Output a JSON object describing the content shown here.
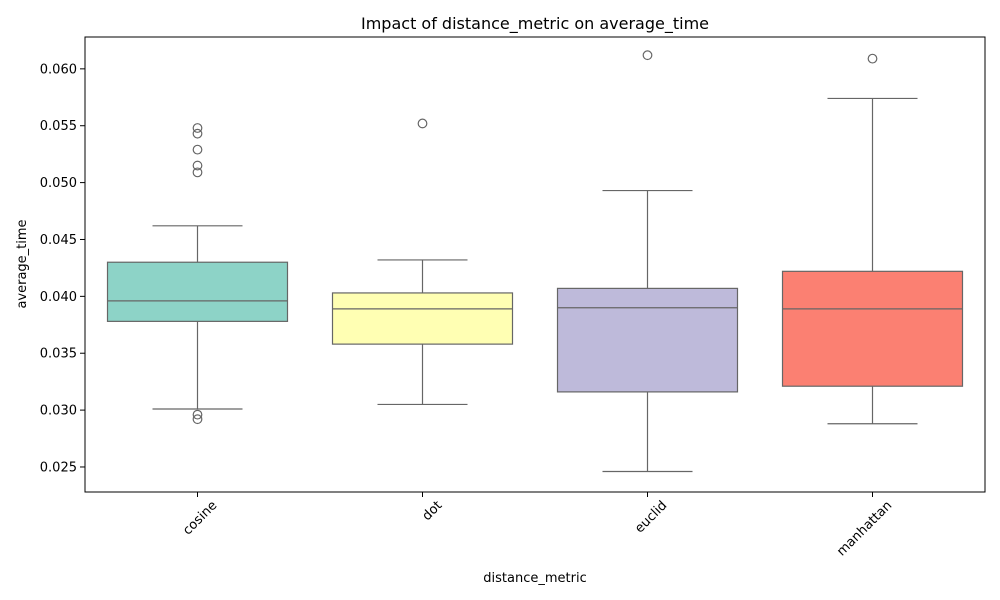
{
  "chart_data": {
    "type": "box",
    "title": "Impact of distance_metric on average_time",
    "xlabel": "distance_metric",
    "ylabel": "average_time",
    "categories": [
      "cosine",
      "dot",
      "euclid",
      "manhattan"
    ],
    "ylim": [
      0.0228,
      0.0628
    ],
    "yticks": [
      0.025,
      0.03,
      0.035,
      0.04,
      0.045,
      0.05,
      0.055,
      0.06
    ],
    "ytick_labels": [
      "0.025",
      "0.030",
      "0.035",
      "0.040",
      "0.045",
      "0.050",
      "0.055",
      "0.060"
    ],
    "grid": false,
    "colors": {
      "box_fill": [
        "#8dd3c7",
        "#ffffb3",
        "#bebada",
        "#fb8072"
      ],
      "stroke": "#666666"
    },
    "series": [
      {
        "category": "cosine",
        "q1": 0.0378,
        "median": 0.0396,
        "q3": 0.043,
        "whisker_low": 0.0301,
        "whisker_high": 0.0462,
        "outliers": [
          0.0548,
          0.0543,
          0.0529,
          0.0515,
          0.0509,
          0.0296,
          0.0292
        ]
      },
      {
        "category": "dot",
        "q1": 0.0358,
        "median": 0.0389,
        "q3": 0.0403,
        "whisker_low": 0.0305,
        "whisker_high": 0.0432,
        "outliers": [
          0.0552
        ]
      },
      {
        "category": "euclid",
        "q1": 0.0316,
        "median": 0.039,
        "q3": 0.0407,
        "whisker_low": 0.0246,
        "whisker_high": 0.0493,
        "outliers": [
          0.0612
        ]
      },
      {
        "category": "manhattan",
        "q1": 0.0321,
        "median": 0.0389,
        "q3": 0.0422,
        "whisker_low": 0.0288,
        "whisker_high": 0.0574,
        "outliers": [
          0.0609
        ]
      }
    ]
  }
}
